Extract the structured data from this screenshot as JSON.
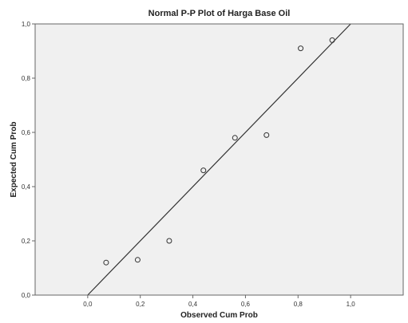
{
  "chart_data": {
    "type": "scatter",
    "title": "Normal P-P Plot of Harga Base Oil",
    "xlabel": "Observed Cum Prob",
    "ylabel": "Expected Cum Prob",
    "xlim": [
      -0.2,
      1.2
    ],
    "ylim": [
      0.0,
      1.0
    ],
    "xticks": [
      0.0,
      0.2,
      0.4,
      0.6,
      0.8,
      1.0
    ],
    "xtick_labels": [
      "0,0",
      "0,2",
      "0,4",
      "0,6",
      "0,8",
      "1,0"
    ],
    "yticks": [
      0.0,
      0.2,
      0.4,
      0.6,
      0.8,
      1.0
    ],
    "ytick_labels": [
      "0,0",
      "0,2",
      "0,4",
      "0,6",
      "0,8",
      "1,0"
    ],
    "grid": false,
    "reference_line": {
      "from": [
        0.0,
        0.0
      ],
      "to": [
        1.0,
        1.0
      ]
    },
    "points": {
      "x": [
        0.07,
        0.19,
        0.31,
        0.44,
        0.56,
        0.68,
        0.81,
        0.93
      ],
      "y": [
        0.12,
        0.13,
        0.2,
        0.46,
        0.58,
        0.59,
        0.91,
        0.94
      ]
    },
    "colors": {
      "plot_background": "#f0f0f0",
      "frame": "#666666",
      "line": "#333333",
      "marker": "#333333"
    }
  }
}
